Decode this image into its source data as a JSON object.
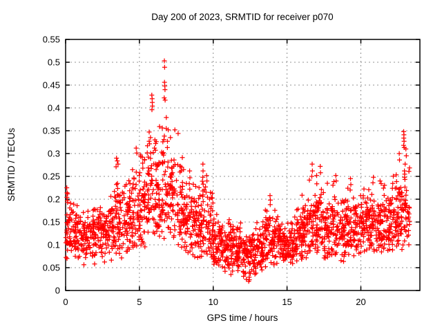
{
  "chart_data": {
    "type": "scatter",
    "title": "Day 200 of 2023, SRMTID for receiver p070",
    "xlabel": "GPS time / hours",
    "ylabel": "SRMTID / TECUs",
    "xlim": [
      0,
      24
    ],
    "ylim": [
      0,
      0.55
    ],
    "xtick_values": [
      0,
      5,
      10,
      15,
      20
    ],
    "xtick_labels": [
      "0",
      "5",
      "10",
      "15",
      "20"
    ],
    "ytick_values": [
      0,
      0.05,
      0.1,
      0.15,
      0.2,
      0.25,
      0.3,
      0.35,
      0.4,
      0.45,
      0.5,
      0.55
    ],
    "ytick_labels": [
      "0",
      "0.05",
      "0.1",
      "0.15",
      "0.2",
      "0.25",
      "0.3",
      "0.35",
      "0.4",
      "0.45",
      "0.5",
      "0.55"
    ],
    "grid": true,
    "legend": "none",
    "marker": "plus",
    "marker_size_px": 7,
    "colors": {
      "marker": "#ff0000",
      "grid": "#909090",
      "axis": "#000000",
      "text": "#000000",
      "background": "#ffffff"
    },
    "seed": 1337,
    "series": [
      {
        "name": "SRMTID receiver p070",
        "representation": "density-bins (x0, x1, n_points, mean, sd, min, max) estimated from pixels",
        "bins": [
          [
            0.0,
            0.5,
            44,
            0.14,
            0.038,
            0.065,
            0.225
          ],
          [
            0.5,
            1.0,
            44,
            0.122,
            0.032,
            0.06,
            0.195
          ],
          [
            1.0,
            1.5,
            44,
            0.115,
            0.03,
            0.055,
            0.185
          ],
          [
            1.5,
            2.0,
            44,
            0.12,
            0.033,
            0.058,
            0.2
          ],
          [
            2.0,
            2.5,
            44,
            0.128,
            0.03,
            0.068,
            0.19
          ],
          [
            2.5,
            3.0,
            44,
            0.128,
            0.035,
            0.058,
            0.205
          ],
          [
            3.0,
            3.5,
            46,
            0.145,
            0.045,
            0.042,
            0.25
          ],
          [
            3.5,
            4.0,
            46,
            0.155,
            0.045,
            0.07,
            0.255
          ],
          [
            4.0,
            4.5,
            48,
            0.165,
            0.045,
            0.08,
            0.265
          ],
          [
            4.5,
            5.0,
            48,
            0.178,
            0.05,
            0.085,
            0.3
          ],
          [
            5.0,
            5.5,
            50,
            0.19,
            0.052,
            0.095,
            0.32
          ],
          [
            5.5,
            6.0,
            50,
            0.205,
            0.06,
            0.1,
            0.385
          ],
          [
            6.0,
            6.5,
            50,
            0.205,
            0.055,
            0.1,
            0.36
          ],
          [
            6.5,
            7.0,
            50,
            0.225,
            0.07,
            0.11,
            0.43
          ],
          [
            7.0,
            7.5,
            48,
            0.195,
            0.055,
            0.1,
            0.34
          ],
          [
            7.5,
            8.0,
            48,
            0.18,
            0.05,
            0.085,
            0.33
          ],
          [
            8.0,
            8.5,
            48,
            0.16,
            0.045,
            0.08,
            0.25
          ],
          [
            8.5,
            9.0,
            48,
            0.148,
            0.042,
            0.072,
            0.24
          ],
          [
            9.0,
            9.5,
            48,
            0.15,
            0.045,
            0.07,
            0.24
          ],
          [
            9.5,
            10.0,
            48,
            0.135,
            0.04,
            0.06,
            0.235
          ],
          [
            10.0,
            10.5,
            48,
            0.102,
            0.03,
            0.048,
            0.175
          ],
          [
            10.5,
            11.0,
            48,
            0.092,
            0.028,
            0.04,
            0.15
          ],
          [
            11.0,
            11.5,
            48,
            0.095,
            0.03,
            0.04,
            0.16
          ],
          [
            11.5,
            12.0,
            48,
            0.09,
            0.03,
            0.032,
            0.15
          ],
          [
            12.0,
            12.5,
            48,
            0.082,
            0.03,
            0.022,
            0.145
          ],
          [
            12.5,
            13.0,
            48,
            0.086,
            0.03,
            0.03,
            0.15
          ],
          [
            13.0,
            13.5,
            48,
            0.095,
            0.03,
            0.042,
            0.16
          ],
          [
            13.5,
            14.0,
            48,
            0.11,
            0.038,
            0.05,
            0.2
          ],
          [
            14.0,
            14.5,
            48,
            0.105,
            0.032,
            0.052,
            0.18
          ],
          [
            14.5,
            15.0,
            48,
            0.1,
            0.028,
            0.052,
            0.16
          ],
          [
            15.0,
            15.5,
            48,
            0.105,
            0.028,
            0.058,
            0.165
          ],
          [
            15.5,
            16.0,
            48,
            0.112,
            0.032,
            0.06,
            0.185
          ],
          [
            16.0,
            16.5,
            48,
            0.13,
            0.04,
            0.068,
            0.22
          ],
          [
            16.5,
            17.0,
            48,
            0.148,
            0.048,
            0.078,
            0.265
          ],
          [
            17.0,
            17.5,
            48,
            0.142,
            0.045,
            0.075,
            0.255
          ],
          [
            17.5,
            18.0,
            48,
            0.132,
            0.04,
            0.068,
            0.245
          ],
          [
            18.0,
            18.5,
            48,
            0.138,
            0.042,
            0.072,
            0.25
          ],
          [
            18.5,
            19.0,
            48,
            0.128,
            0.038,
            0.06,
            0.22
          ],
          [
            19.0,
            19.5,
            48,
            0.125,
            0.038,
            0.068,
            0.245
          ],
          [
            19.5,
            20.0,
            48,
            0.13,
            0.038,
            0.075,
            0.225
          ],
          [
            20.0,
            20.5,
            48,
            0.145,
            0.04,
            0.085,
            0.245
          ],
          [
            20.5,
            21.0,
            48,
            0.142,
            0.036,
            0.085,
            0.245
          ],
          [
            21.0,
            21.5,
            48,
            0.138,
            0.038,
            0.082,
            0.235
          ],
          [
            21.5,
            22.0,
            48,
            0.145,
            0.042,
            0.085,
            0.25
          ],
          [
            22.0,
            22.5,
            48,
            0.15,
            0.048,
            0.082,
            0.26
          ],
          [
            22.5,
            23.0,
            50,
            0.16,
            0.052,
            0.088,
            0.3
          ],
          [
            23.0,
            23.3,
            28,
            0.165,
            0.055,
            0.095,
            0.31
          ]
        ],
        "notable_points": [
          [
            0.08,
            0.225
          ],
          [
            0.1,
            0.214
          ],
          [
            0.09,
            0.204
          ],
          [
            0.12,
            0.197
          ],
          [
            3.45,
            0.29
          ],
          [
            3.5,
            0.284
          ],
          [
            3.55,
            0.277
          ],
          [
            3.42,
            0.271
          ],
          [
            4.78,
            0.312
          ],
          [
            4.82,
            0.301
          ],
          [
            5.06,
            0.297
          ],
          [
            5.84,
            0.428
          ],
          [
            5.86,
            0.42
          ],
          [
            5.87,
            0.412
          ],
          [
            5.88,
            0.404
          ],
          [
            5.85,
            0.396
          ],
          [
            5.75,
            0.335
          ],
          [
            6.05,
            0.33
          ],
          [
            6.1,
            0.322
          ],
          [
            6.02,
            0.312
          ],
          [
            6.69,
            0.503
          ],
          [
            6.71,
            0.489
          ],
          [
            6.7,
            0.456
          ],
          [
            6.72,
            0.448
          ],
          [
            6.73,
            0.44
          ],
          [
            6.68,
            0.422
          ],
          [
            6.74,
            0.417
          ],
          [
            6.82,
            0.379
          ],
          [
            6.55,
            0.356
          ],
          [
            6.95,
            0.352
          ],
          [
            7.4,
            0.352
          ],
          [
            7.62,
            0.344
          ],
          [
            7.1,
            0.335
          ],
          [
            8.4,
            0.262
          ],
          [
            8.42,
            0.247
          ],
          [
            8.38,
            0.234
          ],
          [
            8.41,
            0.222
          ],
          [
            9.3,
            0.277
          ],
          [
            9.31,
            0.262
          ],
          [
            9.29,
            0.248
          ],
          [
            9.32,
            0.233
          ],
          [
            9.3,
            0.218
          ],
          [
            9.28,
            0.206
          ],
          [
            9.55,
            0.252
          ],
          [
            9.57,
            0.24
          ],
          [
            12.4,
            0.02
          ],
          [
            11.2,
            0.035
          ],
          [
            12.05,
            0.031
          ],
          [
            12.9,
            0.038
          ],
          [
            10.8,
            0.042
          ],
          [
            13.3,
            0.045
          ],
          [
            13.85,
            0.208
          ],
          [
            13.87,
            0.198
          ],
          [
            13.86,
            0.188
          ],
          [
            16.7,
            0.277
          ],
          [
            16.72,
            0.262
          ],
          [
            16.68,
            0.25
          ],
          [
            17.25,
            0.272
          ],
          [
            17.27,
            0.258
          ],
          [
            18.3,
            0.252
          ],
          [
            18.33,
            0.24
          ],
          [
            19.3,
            0.245
          ],
          [
            19.32,
            0.232
          ],
          [
            19.28,
            0.22
          ],
          [
            20.85,
            0.248
          ],
          [
            20.82,
            0.236
          ],
          [
            21.3,
            0.24
          ],
          [
            22.6,
            0.3
          ],
          [
            22.62,
            0.286
          ],
          [
            22.9,
            0.348
          ],
          [
            22.92,
            0.341
          ],
          [
            22.91,
            0.334
          ],
          [
            22.93,
            0.327
          ],
          [
            22.9,
            0.318
          ],
          [
            22.94,
            0.313
          ],
          [
            23.0,
            0.277
          ],
          [
            22.95,
            0.262
          ],
          [
            22.97,
            0.255
          ],
          [
            22.96,
            0.248
          ],
          [
            23.05,
            0.31
          ],
          [
            23.08,
            0.295
          ]
        ]
      }
    ]
  }
}
